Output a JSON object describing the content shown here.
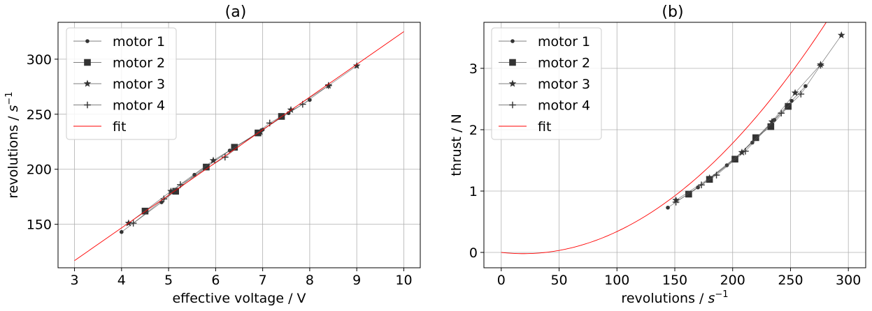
{
  "chart_data": [
    {
      "type": "line",
      "title": "(a)",
      "xlabel": "effective voltage / V",
      "ylabel_text": "revolutions / ",
      "ylabel_unit": "s",
      "ylabel_exp": "−1",
      "xlim": [
        2.65,
        10.35
      ],
      "ylim": [
        110.5,
        333.5
      ],
      "xticks": [
        3,
        4,
        5,
        6,
        7,
        8,
        9,
        10
      ],
      "xtick_labels": [
        "3",
        "4",
        "5",
        "6",
        "7",
        "8",
        "9",
        "10"
      ],
      "yticks": [
        150,
        200,
        250,
        300
      ],
      "ytick_labels": [
        "150",
        "200",
        "250",
        "300"
      ],
      "grid": true,
      "legend_position": "top-left",
      "legend": [
        "motor 1",
        "motor 2",
        "motor 3",
        "motor 4",
        "fit"
      ],
      "series": [
        {
          "name": "motor 1",
          "marker": "circle",
          "color": "#333333",
          "x": [
            4.0,
            4.85,
            5.55,
            6.3,
            7.0,
            7.55,
            8.0
          ],
          "y": [
            143,
            170,
            195,
            217,
            236,
            251,
            263
          ]
        },
        {
          "name": "motor 2",
          "marker": "square",
          "color": "#333333",
          "x": [
            4.5,
            5.15,
            5.8,
            6.4,
            6.9,
            7.4
          ],
          "y": [
            162,
            180,
            202,
            220,
            233,
            248
          ]
        },
        {
          "name": "motor 3",
          "marker": "star",
          "color": "#333333",
          "x": [
            4.15,
            5.05,
            5.95,
            6.95,
            7.6,
            8.4,
            9.0
          ],
          "y": [
            151,
            180,
            208,
            234,
            254,
            276,
            294
          ]
        },
        {
          "name": "motor 4",
          "marker": "plus",
          "color": "#333333",
          "x": [
            4.25,
            4.9,
            5.25,
            6.2,
            7.15,
            7.85,
            8.4
          ],
          "y": [
            151,
            173,
            186,
            211,
            242,
            259,
            276
          ]
        },
        {
          "name": "fit",
          "marker": "none",
          "color": "#ff0000",
          "x": [
            3,
            10
          ],
          "y": [
            117,
            325
          ]
        }
      ]
    },
    {
      "type": "line",
      "title": "(b)",
      "xlabel_text": "revolutions / ",
      "xlabel_unit": "s",
      "xlabel_exp": "−1",
      "ylabel": "thrust / N",
      "xlim": [
        -15,
        315
      ],
      "ylim": [
        -0.25,
        3.75
      ],
      "xticks": [
        0,
        50,
        100,
        150,
        200,
        250,
        300
      ],
      "xtick_labels": [
        "0",
        "50",
        "100",
        "150",
        "200",
        "250",
        "300"
      ],
      "yticks": [
        0,
        1,
        2,
        3
      ],
      "ytick_labels": [
        "0",
        "1",
        "2",
        "3"
      ],
      "grid": true,
      "legend_position": "top-left",
      "legend": [
        "motor 1",
        "motor 2",
        "motor 3",
        "motor 4",
        "fit"
      ],
      "series": [
        {
          "name": "motor 1",
          "marker": "circle",
          "color": "#333333",
          "x": [
            144,
            170,
            195,
            217,
            236,
            251,
            263
          ],
          "y": [
            0.73,
            1.06,
            1.42,
            1.79,
            2.16,
            2.47,
            2.71
          ]
        },
        {
          "name": "motor 2",
          "marker": "square",
          "color": "#333333",
          "x": [
            162,
            180,
            202,
            220,
            233,
            248
          ],
          "y": [
            0.95,
            1.19,
            1.52,
            1.87,
            2.05,
            2.38
          ]
        },
        {
          "name": "motor 3",
          "marker": "star",
          "color": "#333333",
          "x": [
            151,
            180,
            208,
            234,
            254,
            276,
            294
          ],
          "y": [
            0.85,
            1.21,
            1.63,
            2.13,
            2.6,
            3.06,
            3.54
          ]
        },
        {
          "name": "motor 4",
          "marker": "plus",
          "color": "#333333",
          "x": [
            151,
            173,
            186,
            211,
            242,
            259,
            276
          ],
          "y": [
            0.82,
            1.1,
            1.26,
            1.65,
            2.27,
            2.58,
            3.05
          ]
        },
        {
          "name": "fit",
          "marker": "none",
          "color": "#ff0000",
          "curve": "quadratic",
          "coefficients": {
            "a": 5.5e-05,
            "b": -0.0021,
            "c": 0.0
          },
          "x_range": [
            0,
            300
          ]
        }
      ]
    }
  ]
}
